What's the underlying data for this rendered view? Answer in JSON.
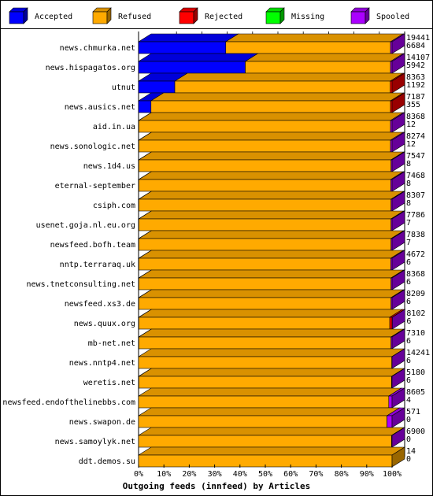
{
  "chart_data": {
    "type": "bar",
    "stacked": true,
    "orientation": "horizontal",
    "style": "3d",
    "xlabel": "Outgoing feeds (innfeed) by Articles",
    "x_unit": "percent",
    "xlim": [
      0,
      100
    ],
    "x_ticks": [
      "0%",
      "10%",
      "20%",
      "30%",
      "40%",
      "50%",
      "60%",
      "70%",
      "80%",
      "90%",
      "100%"
    ],
    "grid": "vertical dashed",
    "legend": {
      "position": "top",
      "items": [
        {
          "label": "Accepted",
          "color": "#0000ff"
        },
        {
          "label": "Refused",
          "color": "#ffaa00"
        },
        {
          "label": "Rejected",
          "color": "#ff0000"
        },
        {
          "label": "Missing",
          "color": "#00ff00"
        },
        {
          "label": "Spooled",
          "color": "#aa00ff"
        }
      ]
    },
    "categories": [
      "news.chmurka.net",
      "news.hispagatos.org",
      "utnut",
      "news.ausics.net",
      "aid.in.ua",
      "news.sonologic.net",
      "news.1d4.us",
      "eternal-september",
      "csiph.com",
      "usenet.goja.nl.eu.org",
      "newsfeed.bofh.team",
      "nntp.terraraq.uk",
      "news.tnetconsulting.net",
      "newsfeed.xs3.de",
      "news.quux.org",
      "mb-net.net",
      "news.nntp4.net",
      "weretis.net",
      "newsfeed.endofthelinebbs.com",
      "news.swapon.de",
      "news.samoylyk.net",
      "ddt.demos.su"
    ],
    "totals_offered": [
      "19441",
      "14107",
      "8363",
      "7187",
      "8368",
      "8274",
      "7547",
      "7468",
      "8307",
      "7786",
      "7838",
      "4672",
      "8368",
      "8209",
      "8102",
      "7310",
      "14241",
      "5180",
      "8605",
      "571",
      "6900",
      "14"
    ],
    "totals_accepted": [
      "6684",
      "5942",
      "1192",
      "355",
      "12",
      "12",
      "8",
      "8",
      "8",
      "7",
      "7",
      "6",
      "6",
      "6",
      "6",
      "6",
      "6",
      "6",
      "4",
      "0",
      "0",
      "0"
    ],
    "series": [
      {
        "name": "Accepted",
        "values": [
          34.4,
          42.1,
          14.3,
          4.9,
          0.1,
          0.1,
          0.1,
          0.1,
          0.1,
          0.1,
          0.1,
          0.1,
          0.1,
          0.1,
          0.1,
          0.1,
          0.0,
          0.1,
          0.0,
          0.0,
          0.0,
          0.0
        ]
      },
      {
        "name": "Refused",
        "values": [
          65.0,
          57.3,
          85.0,
          94.5,
          99.3,
          99.3,
          99.5,
          99.4,
          99.5,
          99.5,
          99.5,
          99.4,
          99.5,
          99.5,
          99.0,
          99.5,
          99.9,
          99.7,
          98.7,
          98.0,
          99.8,
          100.0
        ]
      },
      {
        "name": "Rejected",
        "values": [
          0.0,
          0.0,
          0.7,
          0.6,
          0.0,
          0.0,
          0.0,
          0.0,
          0.0,
          0.0,
          0.0,
          0.0,
          0.0,
          0.0,
          0.9,
          0.0,
          0.0,
          0.0,
          0.0,
          0.0,
          0.0,
          0.0
        ]
      },
      {
        "name": "Missing",
        "values": [
          0.0,
          0.0,
          0.0,
          0.0,
          0.0,
          0.0,
          0.0,
          0.0,
          0.0,
          0.0,
          0.0,
          0.0,
          0.0,
          0.0,
          0.0,
          0.0,
          0.0,
          0.0,
          0.0,
          0.0,
          0.0,
          0.0
        ]
      },
      {
        "name": "Spooled",
        "values": [
          0.6,
          0.6,
          0.0,
          0.0,
          0.6,
          0.6,
          0.4,
          0.5,
          0.4,
          0.4,
          0.4,
          0.5,
          0.4,
          0.4,
          0.1,
          0.4,
          0.1,
          0.2,
          1.3,
          2.0,
          0.2,
          0.0
        ]
      }
    ]
  }
}
